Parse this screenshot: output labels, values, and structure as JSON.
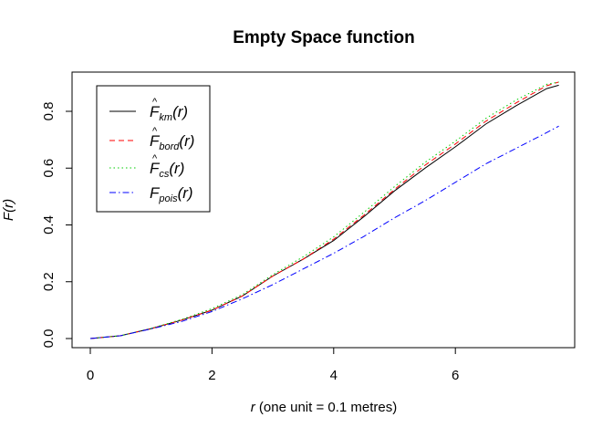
{
  "chart_data": {
    "type": "line",
    "title": "Empty Space function",
    "xlabel_var": "r",
    "xlabel_rest": " (one unit = 0.1 metres)",
    "ylabel": "F(r)",
    "xlim": [
      0,
      7.75
    ],
    "ylim": [
      0,
      0.9
    ],
    "xticks": [
      0,
      2,
      4,
      6
    ],
    "yticks": [
      0.0,
      0.2,
      0.4,
      0.6,
      0.8
    ],
    "ytick_labels": [
      "0.0",
      "0.2",
      "0.4",
      "0.6",
      "0.8"
    ],
    "legend_position": "top-left",
    "x": [
      0,
      0.5,
      1,
      1.5,
      2,
      2.5,
      3,
      3.5,
      4,
      4.5,
      5,
      5.5,
      6,
      6.5,
      7,
      7.5,
      7.7
    ],
    "series": [
      {
        "name": "km",
        "label_main": "F",
        "label_sub": "km",
        "hat": true,
        "color": "#000000",
        "dash": "",
        "values": [
          0,
          0.01,
          0.035,
          0.065,
          0.1,
          0.15,
          0.22,
          0.28,
          0.345,
          0.43,
          0.52,
          0.6,
          0.675,
          0.755,
          0.82,
          0.88,
          0.892
        ]
      },
      {
        "name": "bord",
        "label_main": "F",
        "label_sub": "bord",
        "hat": true,
        "color": "#ff0000",
        "dash": "6,4",
        "values": [
          0,
          0.01,
          0.035,
          0.065,
          0.1,
          0.15,
          0.22,
          0.28,
          0.35,
          0.435,
          0.525,
          0.61,
          0.685,
          0.765,
          0.83,
          0.89,
          0.903
        ]
      },
      {
        "name": "cs",
        "label_main": "F",
        "label_sub": "cs",
        "hat": true,
        "color": "#00cc00",
        "dash": "1.5,3",
        "values": [
          0,
          0.01,
          0.036,
          0.067,
          0.105,
          0.155,
          0.225,
          0.288,
          0.358,
          0.445,
          0.535,
          0.62,
          0.695,
          0.775,
          0.84,
          0.895,
          0.903
        ]
      },
      {
        "name": "pois",
        "label_main": "F",
        "label_sub": "pois",
        "hat": false,
        "color": "#0000ff",
        "dash": "7,3,1.5,3",
        "values": [
          0,
          0.01,
          0.034,
          0.06,
          0.095,
          0.14,
          0.19,
          0.245,
          0.3,
          0.36,
          0.425,
          0.485,
          0.55,
          0.615,
          0.67,
          0.725,
          0.748
        ]
      }
    ]
  }
}
